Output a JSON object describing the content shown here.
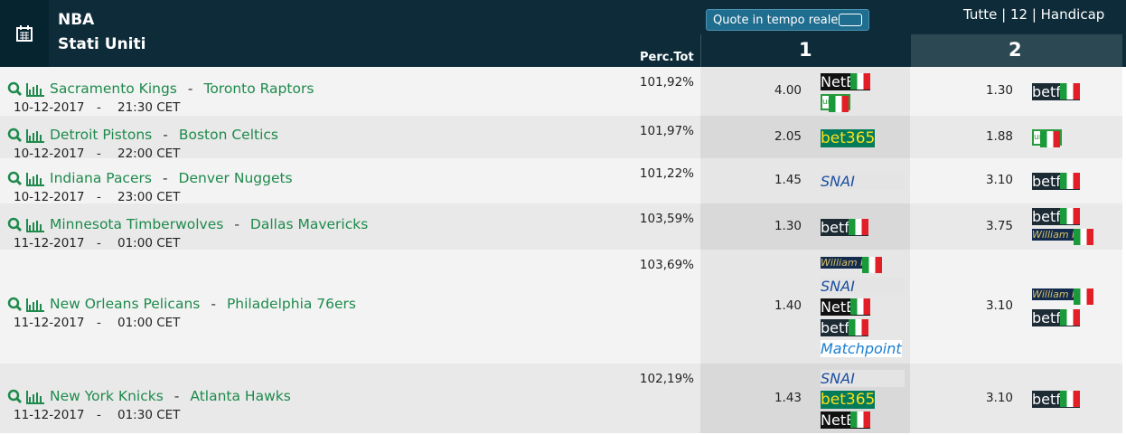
{
  "header": {
    "league": "NBA",
    "country": "Stati Uniti",
    "perc_label": "Perc.Tot",
    "live_button": "Quote in tempo reale",
    "filters": "Tutte | 12 | Handicap",
    "col1": "1",
    "col2": "2"
  },
  "team_separator": "-",
  "time_separator": "-",
  "rows": [
    {
      "home": "Sacramento Kings",
      "away": "Toronto Raptors",
      "date": "10-12-2017",
      "time": "21:30 CET",
      "perc": "101,92%",
      "odd1": "4.00",
      "books1": [
        "NetBet",
        "unibet"
      ],
      "odd2": "1.30",
      "books2": [
        "betfair"
      ]
    },
    {
      "home": "Detroit Pistons",
      "away": "Boston Celtics",
      "date": "10-12-2017",
      "time": "22:00 CET",
      "perc": "101,97%",
      "odd1": "2.05",
      "books1": [
        "bet365"
      ],
      "odd2": "1.88",
      "books2": [
        "unibet"
      ]
    },
    {
      "home": "Indiana Pacers",
      "away": "Denver Nuggets",
      "date": "10-12-2017",
      "time": "23:00 CET",
      "perc": "101,22%",
      "odd1": "1.45",
      "books1": [
        "SNAI"
      ],
      "odd2": "3.10",
      "books2": [
        "betfair"
      ]
    },
    {
      "home": "Minnesota Timberwolves",
      "away": "Dallas Mavericks",
      "date": "11-12-2017",
      "time": "01:00 CET",
      "perc": "103,59%",
      "odd1": "1.30",
      "books1": [
        "betfair"
      ],
      "odd2": "3.75",
      "books2": [
        "betfair",
        "William HILL"
      ]
    },
    {
      "home": "New Orleans Pelicans",
      "away": "Philadelphia 76ers",
      "date": "11-12-2017",
      "time": "01:00 CET",
      "perc": "103,69%",
      "odd1": "1.40",
      "books1": [
        "William HILL",
        "SNAI",
        "NetBet",
        "betfair",
        "Matchpoint"
      ],
      "odd2": "3.10",
      "books2": [
        "William HILL",
        "betfair"
      ]
    },
    {
      "home": "New York Knicks",
      "away": "Atlanta Hawks",
      "date": "11-12-2017",
      "time": "01:30 CET",
      "perc": "102,19%",
      "odd1": "1.43",
      "books1": [
        "SNAI",
        "bet365",
        "NetBet"
      ],
      "odd2": "3.10",
      "books2": [
        "betfair"
      ]
    }
  ]
}
